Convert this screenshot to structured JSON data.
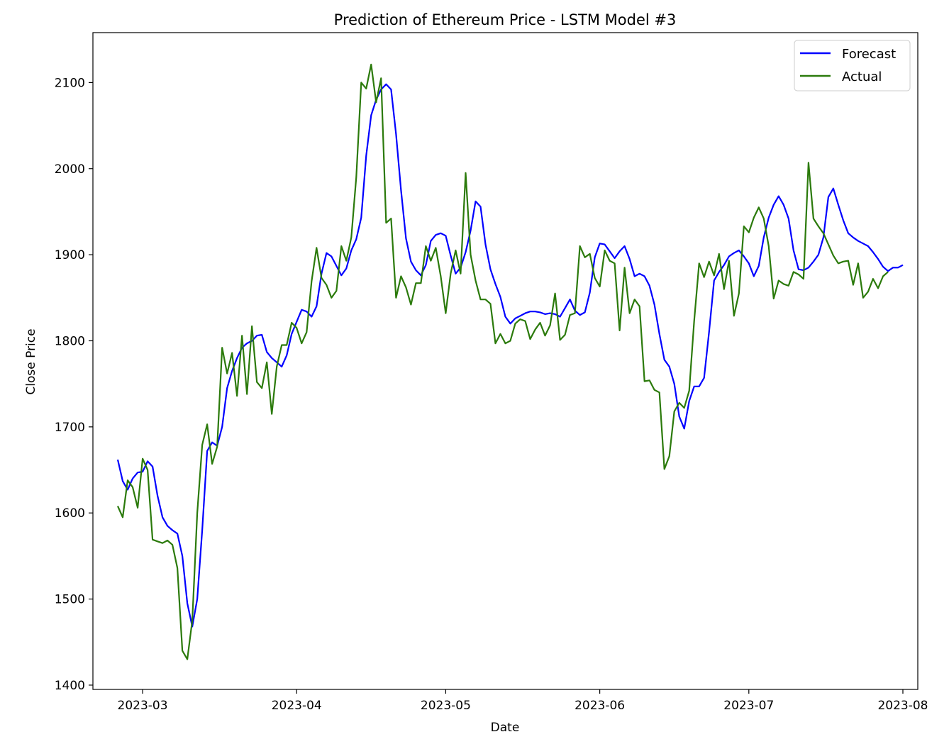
{
  "chart_data": {
    "type": "line",
    "title": "Prediction of Ethereum Price - LSTM Model #3",
    "xlabel": "Date",
    "ylabel": "Close Price",
    "x_start": "2023-02-24",
    "xlim": [
      "2023-02-19",
      "2023-08-04"
    ],
    "ylim": [
      1395,
      2158
    ],
    "yticks": [
      1400,
      1500,
      1600,
      1700,
      1800,
      1900,
      2000,
      2100
    ],
    "xticks": [
      {
        "label": "2023-03",
        "date": "2023-03-01"
      },
      {
        "label": "2023-04",
        "date": "2023-04-01"
      },
      {
        "label": "2023-05",
        "date": "2023-05-01"
      },
      {
        "label": "2023-06",
        "date": "2023-06-01"
      },
      {
        "label": "2023-07",
        "date": "2023-07-01"
      },
      {
        "label": "2023-08",
        "date": "2023-08-01"
      }
    ],
    "legend": {
      "position": "top-right"
    },
    "grid": false,
    "series": [
      {
        "name": "Forecast",
        "color": "#0000ff",
        "values": [
          1662,
          1637,
          1627,
          1640,
          1647,
          1648,
          1660,
          1654,
          1620,
          1595,
          1585,
          1580,
          1576,
          1550,
          1495,
          1468,
          1500,
          1580,
          1672,
          1682,
          1678,
          1700,
          1745,
          1765,
          1780,
          1792,
          1797,
          1800,
          1806,
          1807,
          1787,
          1780,
          1775,
          1770,
          1783,
          1808,
          1822,
          1836,
          1834,
          1828,
          1840,
          1878,
          1902,
          1898,
          1887,
          1876,
          1884,
          1905,
          1918,
          1943,
          2015,
          2062,
          2080,
          2092,
          2098,
          2092,
          2040,
          1975,
          1919,
          1892,
          1882,
          1876,
          1888,
          1916,
          1923,
          1925,
          1922,
          1899,
          1878,
          1885,
          1903,
          1928,
          1962,
          1956,
          1912,
          1883,
          1866,
          1851,
          1828,
          1820,
          1826,
          1829,
          1832,
          1834,
          1834,
          1833,
          1831,
          1832,
          1831,
          1828,
          1838,
          1848,
          1835,
          1830,
          1833,
          1856,
          1897,
          1913,
          1912,
          1904,
          1896,
          1904,
          1910,
          1895,
          1875,
          1878,
          1875,
          1864,
          1842,
          1808,
          1778,
          1770,
          1750,
          1712,
          1698,
          1730,
          1747,
          1747,
          1757,
          1810,
          1870,
          1880,
          1888,
          1898,
          1902,
          1905,
          1898,
          1890,
          1875,
          1887,
          1920,
          1943,
          1958,
          1968,
          1958,
          1942,
          1905,
          1883,
          1882,
          1885,
          1892,
          1900,
          1920,
          1967,
          1977,
          1958,
          1940,
          1925,
          1920,
          1916,
          1913,
          1910,
          1903,
          1895,
          1886,
          1881,
          1885,
          1885,
          1888
        ]
      },
      {
        "name": "Actual",
        "color": "#2b7a0b",
        "values": [
          1608,
          1595,
          1638,
          1630,
          1606,
          1663,
          1650,
          1569,
          1567,
          1565,
          1568,
          1563,
          1536,
          1440,
          1430,
          1475,
          1600,
          1679,
          1703,
          1657,
          1677,
          1792,
          1762,
          1786,
          1736,
          1806,
          1738,
          1817,
          1752,
          1745,
          1775,
          1715,
          1770,
          1795,
          1795,
          1821,
          1815,
          1797,
          1810,
          1869,
          1908,
          1873,
          1865,
          1850,
          1858,
          1910,
          1893,
          1920,
          1990,
          2100,
          2093,
          2121,
          2077,
          2105,
          1937,
          1942,
          1850,
          1875,
          1862,
          1842,
          1867,
          1867,
          1910,
          1893,
          1908,
          1875,
          1832,
          1878,
          1905,
          1878,
          1995,
          1900,
          1870,
          1848,
          1848,
          1843,
          1797,
          1808,
          1797,
          1800,
          1820,
          1825,
          1823,
          1802,
          1813,
          1821,
          1806,
          1818,
          1855,
          1801,
          1807,
          1830,
          1832,
          1910,
          1897,
          1901,
          1873,
          1863,
          1905,
          1893,
          1890,
          1812,
          1885,
          1832,
          1848,
          1840,
          1753,
          1754,
          1743,
          1740,
          1651,
          1666,
          1718,
          1728,
          1722,
          1742,
          1823,
          1890,
          1874,
          1892,
          1876,
          1901,
          1860,
          1893,
          1829,
          1855,
          1933,
          1926,
          1943,
          1955,
          1942,
          1910,
          1849,
          1870,
          1866,
          1864,
          1880,
          1877,
          1872,
          2007,
          1942,
          1933,
          1925,
          1912,
          1899,
          1890,
          1892,
          1893,
          1865,
          1890,
          1850,
          1857,
          1872,
          1861,
          1875,
          1880
        ]
      }
    ]
  }
}
